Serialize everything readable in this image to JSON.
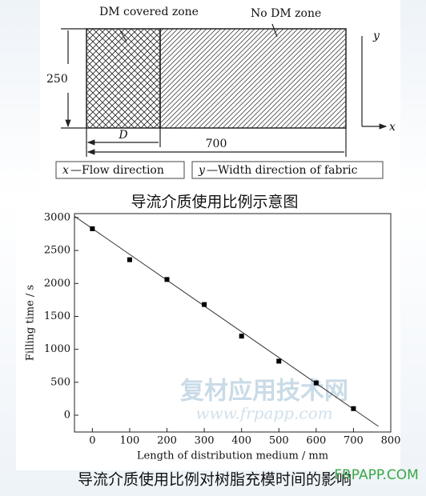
{
  "diagram": {
    "zone_labels": [
      "DM covered zone",
      "No DM zone"
    ],
    "height_label": "250",
    "dm_label": "D",
    "length_label": "700",
    "axis_y": "y",
    "axis_x": "x",
    "legend": [
      {
        "symbol": "x",
        "text": "—Flow direction"
      },
      {
        "symbol": "y",
        "text": "—Width direction of fabric"
      }
    ]
  },
  "diagram_caption": "导流介质使用比例示意图",
  "chart_data": {
    "type": "scatter",
    "x_label": "Length of distribution medium / mm",
    "y_label": "Filling time / s",
    "x": [
      0,
      100,
      200,
      300,
      400,
      500,
      600,
      700
    ],
    "series": [
      {
        "color": "#000000",
        "values": [
          2830,
          2360,
          2060,
          1680,
          1200,
          820,
          490,
          100
        ]
      }
    ],
    "fit_line": {
      "x": [
        -48,
        767
      ],
      "values": [
        3020,
        -170
      ]
    },
    "xlim": [
      -48,
      800
    ],
    "ylim": [
      -255,
      3060
    ],
    "xticks": [
      0,
      100,
      200,
      300,
      400,
      500,
      600,
      700,
      800
    ],
    "yticks": [
      0,
      500,
      1000,
      1500,
      2000,
      2500,
      3000
    ]
  },
  "chart_caption": "导流介质使用比例对树脂充模时间的影响",
  "watermark": [
    "复材应用技术网",
    "www.frpapp.com",
    "FRPAPP.COM"
  ]
}
